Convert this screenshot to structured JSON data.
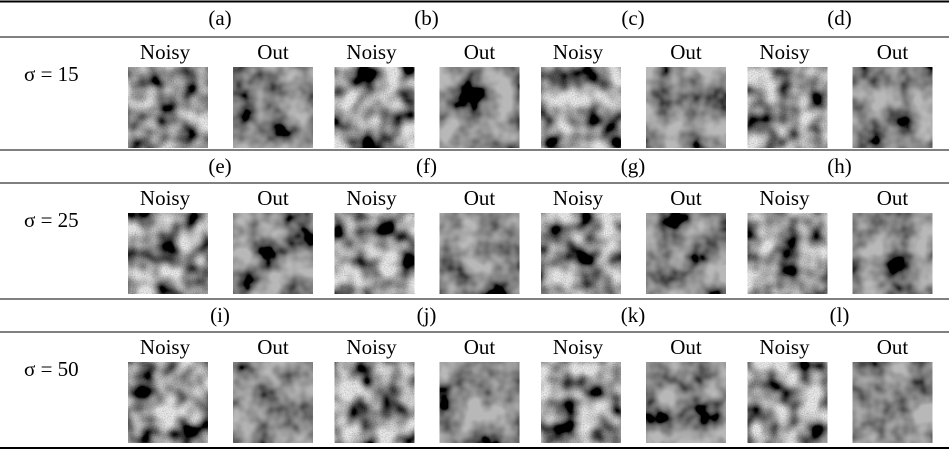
{
  "rows": [
    {
      "sigma": "σ = 15",
      "panels": [
        {
          "label": "(a)",
          "left": "Noisy",
          "right": "Out"
        },
        {
          "label": "(b)",
          "left": "Noisy",
          "right": "Out"
        },
        {
          "label": "(c)",
          "left": "Noisy",
          "right": "Out"
        },
        {
          "label": "(d)",
          "left": "Noisy",
          "right": "Out"
        }
      ]
    },
    {
      "sigma": "σ = 25",
      "panels": [
        {
          "label": "(e)",
          "left": "Noisy",
          "right": "Out"
        },
        {
          "label": "(f)",
          "left": "Noisy",
          "right": "Out"
        },
        {
          "label": "(g)",
          "left": "Noisy",
          "right": "Out"
        },
        {
          "label": "(h)",
          "left": "Noisy",
          "right": "Out"
        }
      ]
    },
    {
      "sigma": "σ = 50",
      "panels": [
        {
          "label": "(i)",
          "left": "Noisy",
          "right": "Out"
        },
        {
          "label": "(j)",
          "left": "Noisy",
          "right": "Out"
        },
        {
          "label": "(k)",
          "left": "Noisy",
          "right": "Out"
        },
        {
          "label": "(l)",
          "left": "Noisy",
          "right": "Out"
        }
      ]
    }
  ]
}
